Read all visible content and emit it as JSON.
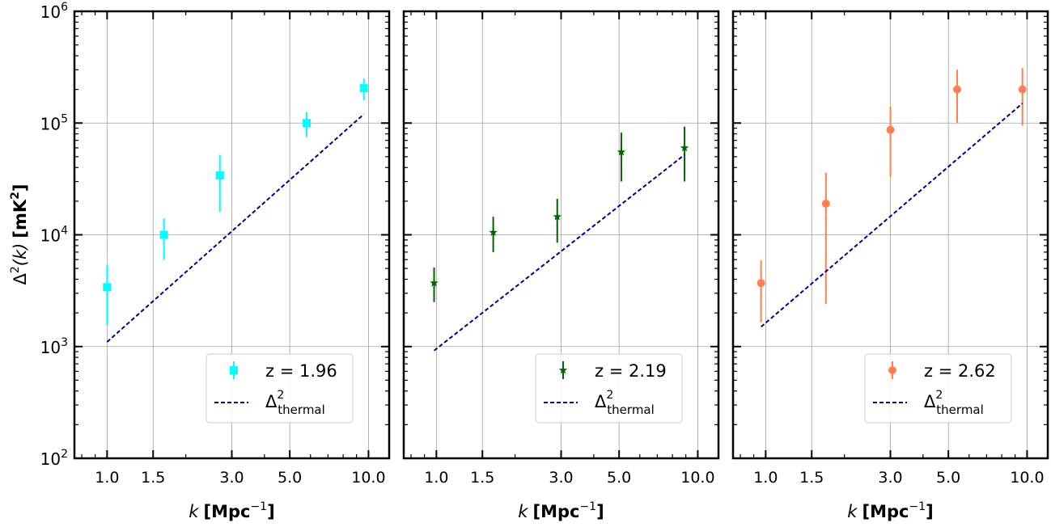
{
  "chart_data": [
    {
      "type": "scatter",
      "panel": "left",
      "xlabel_var": "k",
      "xlabel_unit": "[Mpc",
      "xlabel_exp": "−1",
      "xlabel_close": "]",
      "ylabel_prefix": "Δ",
      "ylabel_sup": "2",
      "ylabel_mid": "(k)",
      "ylabel_unit": "[mK",
      "ylabel_unit_sup": "2",
      "ylabel_close": "]",
      "xscale": "log",
      "yscale": "log",
      "xlim": [
        0.75,
        12.0
      ],
      "ylim": [
        100,
        1000000
      ],
      "xticks": [
        1.0,
        1.5,
        3.0,
        5.0,
        10.0
      ],
      "xtick_labels": [
        "1.0",
        "1.5",
        "3.0",
        "5.0",
        "10.0"
      ],
      "ytick_base": "10",
      "ytick_exps": [
        "2",
        "3",
        "4",
        "5",
        "6"
      ],
      "grid": true,
      "legend_position": "lower-right",
      "series": [
        {
          "name": "z = 1.96",
          "marker": "square",
          "color": "#00ffff",
          "x": [
            1.0,
            1.65,
            2.7,
            5.8,
            9.6
          ],
          "y": [
            3400,
            10000,
            34000,
            100000,
            205000
          ],
          "y_low": [
            1550,
            6000,
            16000,
            75000,
            160000
          ],
          "y_high": [
            5400,
            14000,
            52000,
            125000,
            250000
          ]
        },
        {
          "name": "Δ",
          "sup": "2",
          "sub": "thermal",
          "style": "dashed",
          "color": "#000080",
          "x": [
            1.0,
            9.6
          ],
          "y": [
            1100,
            120000
          ]
        }
      ]
    },
    {
      "type": "scatter",
      "panel": "middle",
      "xlabel_var": "k",
      "xlabel_unit": "[Mpc",
      "xlabel_exp": "−1",
      "xlabel_close": "]",
      "xscale": "log",
      "yscale": "log",
      "xlim": [
        0.75,
        12.0
      ],
      "ylim": [
        100,
        1000000
      ],
      "xticks": [
        1.0,
        1.5,
        3.0,
        5.0,
        10.0
      ],
      "xtick_labels": [
        "1.0",
        "1.5",
        "3.0",
        "5.0",
        "10.0"
      ],
      "grid": true,
      "legend_position": "lower-right",
      "series": [
        {
          "name": "z = 2.19",
          "marker": "star",
          "color": "#006400",
          "x": [
            0.98,
            1.65,
            2.9,
            5.1,
            8.9
          ],
          "y": [
            3700,
            10500,
            14500,
            55000,
            60000
          ],
          "y_low": [
            2500,
            7000,
            8500,
            30000,
            30000
          ],
          "y_high": [
            5100,
            14500,
            21000,
            82000,
            93000
          ]
        },
        {
          "name": "Δ",
          "sup": "2",
          "sub": "thermal",
          "style": "dashed",
          "color": "#000080",
          "x": [
            0.98,
            8.9
          ],
          "y": [
            920,
            52000
          ]
        }
      ]
    },
    {
      "type": "scatter",
      "panel": "right",
      "xlabel_var": "k",
      "xlabel_unit": "[Mpc",
      "xlabel_exp": "−1",
      "xlabel_close": "]",
      "xscale": "log",
      "yscale": "log",
      "xlim": [
        0.75,
        12.0
      ],
      "ylim": [
        100,
        1000000
      ],
      "xticks": [
        1.0,
        1.5,
        3.0,
        5.0,
        10.0
      ],
      "xtick_labels": [
        "1.0",
        "1.5",
        "3.0",
        "5.0",
        "10.0"
      ],
      "grid": true,
      "legend_position": "lower-right",
      "series": [
        {
          "name": "z = 2.62",
          "marker": "circle",
          "color": "#ff7f50",
          "x": [
            0.96,
            1.7,
            3.0,
            5.4,
            9.6
          ],
          "y": [
            3700,
            19000,
            87000,
            200000,
            200000
          ],
          "y_low": [
            1650,
            2400,
            33000,
            100000,
            95000
          ],
          "y_high": [
            5900,
            36000,
            140000,
            300000,
            310000
          ]
        },
        {
          "name": "Δ",
          "sup": "2",
          "sub": "thermal",
          "style": "dashed",
          "color": "#000080",
          "x": [
            0.96,
            9.6
          ],
          "y": [
            1500,
            150000
          ]
        }
      ]
    }
  ]
}
